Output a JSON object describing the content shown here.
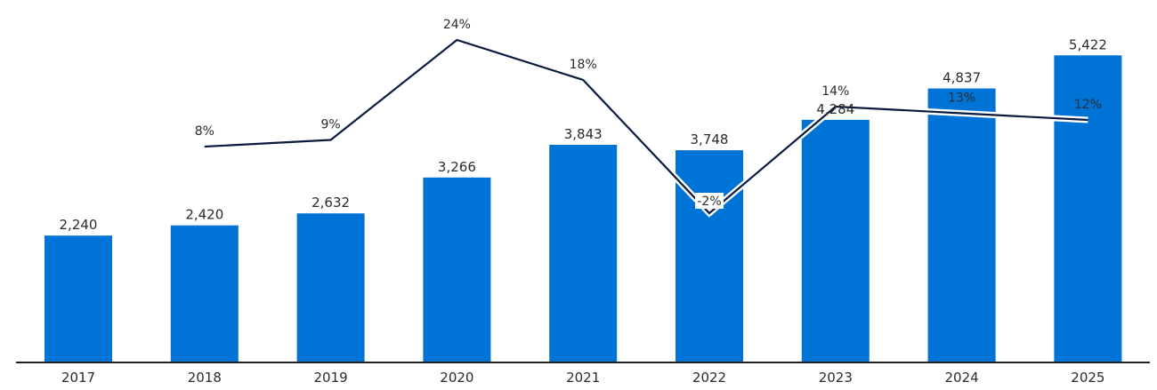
{
  "chart_data": {
    "type": "bar",
    "categories": [
      "2017",
      "2018",
      "2019",
      "2020",
      "2021",
      "2022",
      "2023",
      "2024",
      "2025"
    ],
    "series": [
      {
        "values": [
          2240,
          2420,
          2632,
          3266,
          3843,
          3748,
          4284,
          4837,
          5422
        ],
        "labels": [
          "2,240",
          "2,420",
          "2,632",
          "3,266",
          "3,843",
          "3,748",
          "4,284",
          "4,837",
          "5,422"
        ],
        "color": "#0073d6",
        "chart_type": "bar"
      },
      {
        "values": [
          null,
          8,
          9,
          24,
          18,
          -2,
          14,
          13,
          12
        ],
        "labels": [
          "",
          "8%",
          "9%",
          "24%",
          "18%",
          "-2%",
          "14%",
          "13%",
          "12%"
        ],
        "color": "#0b1b3f",
        "chart_type": "line"
      }
    ],
    "grid": false,
    "legend": "none",
    "ylim": [
      0,
      6400
    ],
    "ylim_secondary": [
      -24,
      30
    ]
  }
}
